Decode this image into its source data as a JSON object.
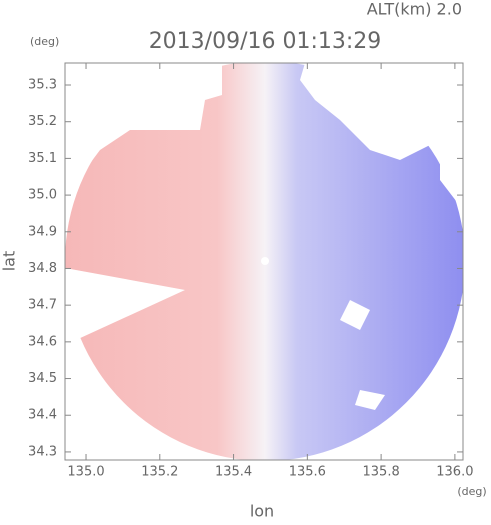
{
  "chart_data": {
    "type": "radar-velocity",
    "title": "2013/09/16 01:13:29",
    "annotation": "ALT(km) 2.0",
    "y_unit": "(deg)",
    "x_unit": "(deg)",
    "x_label": "lon",
    "y_label": "lat",
    "xlim": [
      134.943,
      136.022
    ],
    "ylim": [
      34.278,
      35.36
    ],
    "xticks": [
      {
        "value": 135.0,
        "label": "135.0"
      },
      135.2,
      135.4,
      135.6,
      135.8,
      {
        "value": 136.0,
        "label": "136.0"
      }
    ],
    "yticks": [
      34.3,
      34.4,
      34.5,
      34.6,
      34.7,
      34.8,
      34.9,
      {
        "value": 35.0,
        "label": "35.0"
      },
      35.1,
      35.2,
      35.3
    ]
  }
}
